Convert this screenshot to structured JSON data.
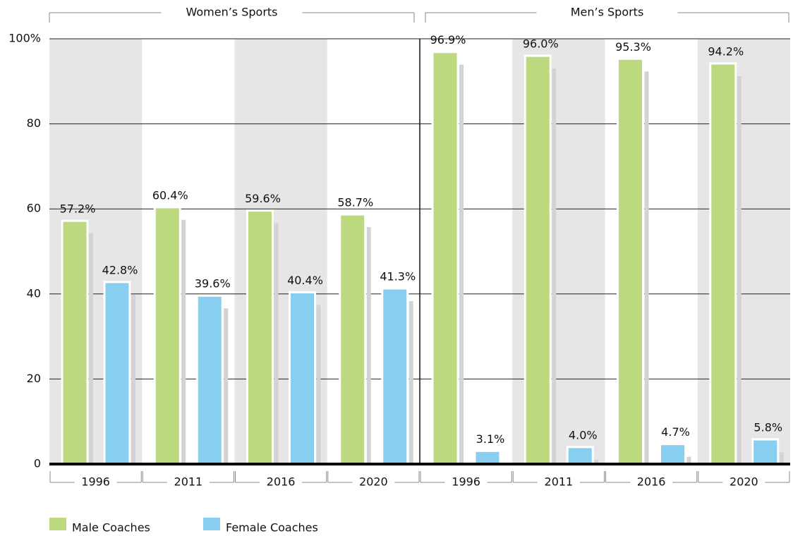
{
  "chart_data": {
    "type": "bar",
    "groups": [
      "Women’s Sports",
      "Men’s Sports"
    ],
    "categories": [
      "1996",
      "2011",
      "2016",
      "2020",
      "1996",
      "2011",
      "2016",
      "2020"
    ],
    "series": [
      {
        "name": "Male Coaches",
        "color": "#bdd97f",
        "values": [
          57.2,
          60.4,
          59.6,
          58.7,
          96.9,
          96.0,
          95.3,
          94.2
        ],
        "value_labels": [
          "57.2%",
          "60.4%",
          "59.6%",
          "58.7%",
          "96.9%",
          "96.0%",
          "95.3%",
          "94.2%"
        ]
      },
      {
        "name": "Female Coaches",
        "color": "#87cef0",
        "values": [
          42.8,
          39.6,
          40.4,
          41.3,
          3.1,
          4.0,
          4.7,
          5.8
        ],
        "value_labels": [
          "42.8%",
          "39.6%",
          "40.4%",
          "41.3%",
          "3.1%",
          "4.0%",
          "4.7%",
          "5.8%"
        ]
      }
    ],
    "ylim": [
      0,
      100
    ],
    "yticks": [
      0,
      20,
      40,
      60,
      80,
      {
        "value": 100,
        "label": "100%"
      }
    ],
    "grid": true
  }
}
